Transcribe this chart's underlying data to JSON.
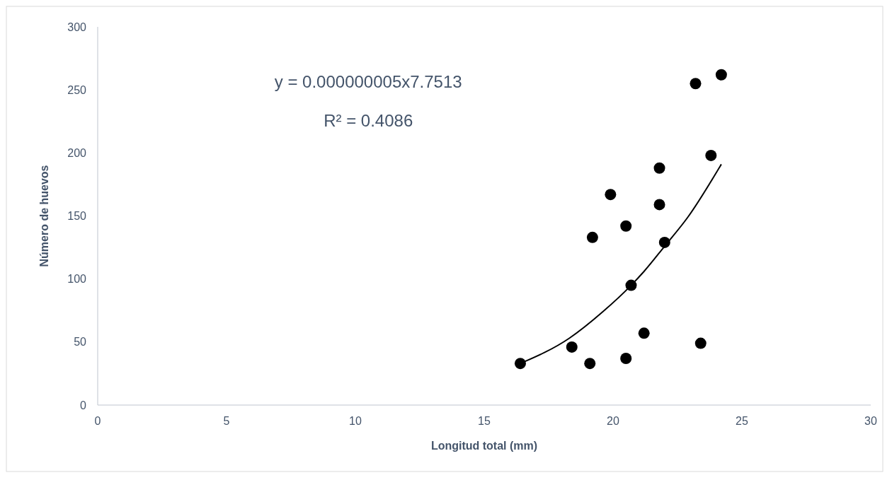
{
  "chart_data": {
    "type": "scatter",
    "xlabel": "Longitud total (mm)",
    "ylabel": "Número de huevos",
    "xlim": [
      0,
      30
    ],
    "ylim": [
      0,
      300
    ],
    "xticks": [
      0,
      5,
      10,
      15,
      20,
      25,
      30
    ],
    "yticks": [
      0,
      50,
      100,
      150,
      200,
      250,
      300
    ],
    "marker": "circle",
    "annotations": [
      "y = 0.000000005x7.7513",
      "R² = 0.4086"
    ],
    "series": [
      {
        "color": "#000000",
        "x": [
          16.4,
          18.4,
          19.1,
          20.5,
          21.2,
          23.4,
          20.7,
          22.0,
          19.2,
          20.5,
          21.8,
          19.9,
          21.8,
          23.8,
          23.2,
          24.2
        ],
        "values": [
          33,
          46,
          33,
          37,
          57,
          49,
          95,
          129,
          133,
          142,
          159,
          167,
          188,
          198,
          255,
          262
        ]
      },
      {
        "type": "line",
        "color": "#000000",
        "marker": "none",
        "x": [
          16.4,
          18.3,
          19.6,
          20.7,
          21.2,
          22.0,
          22.9,
          24.2
        ],
        "values": [
          33,
          53,
          74,
          95,
          106,
          126,
          149,
          191
        ]
      }
    ]
  }
}
